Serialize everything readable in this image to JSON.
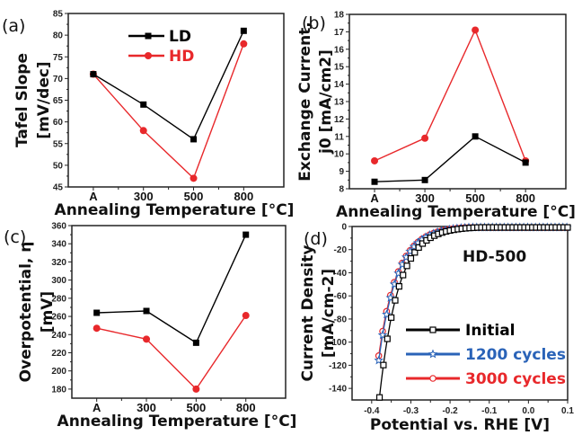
{
  "chart_data": [
    {
      "panel_label": "(a)",
      "type": "line",
      "xlabel": "Annealing Temperature [°C]",
      "ylabel_line1": "Tafel Slope",
      "ylabel_line2": "[mV/dec]",
      "categories": [
        "A",
        "300",
        "500",
        "800"
      ],
      "ylim": [
        45,
        85
      ],
      "yticks": [
        45,
        50,
        55,
        60,
        65,
        70,
        75,
        80,
        85
      ],
      "legend_position": "top-center",
      "series": [
        {
          "name": "LD",
          "color": "#000000",
          "marker": "square",
          "values": [
            71,
            64,
            56,
            81
          ]
        },
        {
          "name": "HD",
          "color": "#e8282b",
          "marker": "circle",
          "values": [
            71,
            58,
            47,
            78
          ]
        }
      ]
    },
    {
      "panel_label": "(b)",
      "type": "line",
      "xlabel": "Annealing Temperature [°C]",
      "ylabel_line1": "Exchange Current,",
      "ylabel_line2": "j0 [mA/cm2]",
      "categories": [
        "A",
        "300",
        "500",
        "800"
      ],
      "ylim": [
        8,
        18
      ],
      "yticks": [
        8,
        9,
        10,
        11,
        12,
        13,
        14,
        15,
        16,
        17,
        18
      ],
      "series": [
        {
          "name": "LD",
          "color": "#000000",
          "marker": "square",
          "values": [
            8.4,
            8.5,
            11.0,
            9.5
          ]
        },
        {
          "name": "HD",
          "color": "#e8282b",
          "marker": "circle",
          "values": [
            9.6,
            10.9,
            17.1,
            9.6
          ]
        }
      ]
    },
    {
      "panel_label": "(c)",
      "type": "line",
      "xlabel": "Annealing Temperature [°C]",
      "ylabel_line1": "Overpotential, η",
      "ylabel_line2": "[mV]",
      "categories": [
        "A",
        "300",
        "500",
        "800"
      ],
      "ylim": [
        170,
        360
      ],
      "yticks": [
        180,
        200,
        220,
        240,
        260,
        280,
        300,
        320,
        340,
        360
      ],
      "series": [
        {
          "name": "LD",
          "color": "#000000",
          "marker": "square",
          "values": [
            264,
            266,
            231,
            350
          ]
        },
        {
          "name": "HD",
          "color": "#e8282b",
          "marker": "circle",
          "values": [
            247,
            235,
            180,
            261
          ]
        }
      ]
    },
    {
      "panel_label": "(d)",
      "type": "line",
      "title": "HD-500",
      "xlabel": "Potential vs. RHE [V]",
      "ylabel_line1": "Current Density",
      "ylabel_line2": "[mA/cm-2]",
      "xlim": [
        -0.45,
        0.1
      ],
      "xticks": [
        -0.4,
        -0.3,
        -0.2,
        -0.1,
        0.0,
        0.1
      ],
      "xtick_labels": [
        "-0.4",
        "-0.3",
        "-0.2",
        "-0.1",
        "0.0",
        "0.1"
      ],
      "ylim": [
        -150,
        0
      ],
      "yticks": [
        0,
        -20,
        -40,
        -60,
        -80,
        -100,
        -120,
        -140
      ],
      "legend_position": "bottom-right",
      "series": [
        {
          "name": "Initial",
          "color": "#000000",
          "marker": "open-square",
          "onset": -0.175,
          "x_at_min": -0.38,
          "y_min": -147
        },
        {
          "name": "1200 cycles",
          "color": "#2a63b8",
          "marker": "open-star",
          "onset": -0.2,
          "x_at_min": -0.382,
          "y_min": -115
        },
        {
          "name": "3000 cycles",
          "color": "#e8282b",
          "marker": "open-circle",
          "onset": -0.205,
          "x_at_min": -0.382,
          "y_min": -111
        }
      ]
    }
  ]
}
